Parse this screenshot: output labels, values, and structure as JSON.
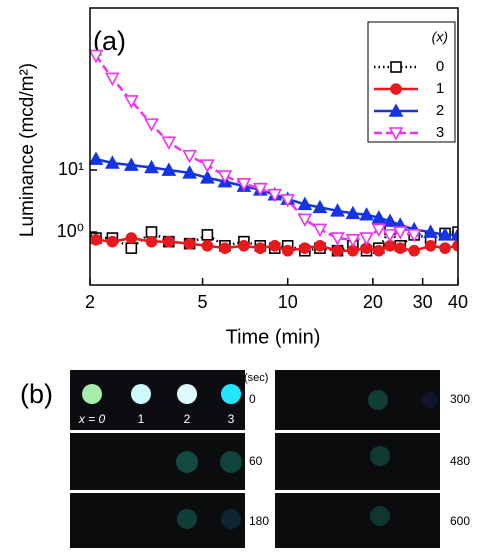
{
  "chart_data": {
    "type": "line",
    "panel_label": "(a)",
    "x_label": "Time (min)",
    "y_label": "Luminance (mcd/m²)",
    "xscale": "log",
    "yscale": "log",
    "xlim": [
      2,
      40
    ],
    "ylim": [
      0.14,
      4100
    ],
    "xticks": [
      2,
      5,
      10,
      20,
      30,
      40
    ],
    "yticks": [
      {
        "value": 1,
        "label": "10⁰"
      },
      {
        "value": 10,
        "label": "10¹"
      }
    ],
    "legend_title": "(x)",
    "legend": "upper right",
    "x": [
      2.1,
      2.4,
      2.8,
      3.3,
      3.8,
      4.5,
      5.2,
      6,
      7,
      8,
      9,
      10,
      11.5,
      13,
      15,
      17,
      19,
      21,
      23,
      25,
      28,
      32,
      36,
      40
    ],
    "series": [
      {
        "name": "0",
        "color": "#000000",
        "dash": "dot",
        "marker": "square-open",
        "values": [
          0.8,
          0.8,
          0.55,
          1.0,
          0.7,
          0.65,
          0.9,
          0.6,
          0.7,
          0.6,
          0.55,
          0.6,
          0.5,
          0.55,
          0.5,
          0.6,
          0.5,
          0.55,
          1.1,
          0.6,
          0.9,
          0.8,
          0.95,
          1.0
        ]
      },
      {
        "name": "1",
        "color": "#e8181c",
        "dash": "solid",
        "marker": "circle",
        "values": [
          0.75,
          0.7,
          0.8,
          0.7,
          0.7,
          0.65,
          0.6,
          0.55,
          0.6,
          0.55,
          0.6,
          0.5,
          0.55,
          0.6,
          0.5,
          0.5,
          0.55,
          0.5,
          0.6,
          0.55,
          0.5,
          0.6,
          0.55,
          0.6
        ]
      },
      {
        "name": "2",
        "color": "#1434e6",
        "dash": "solid",
        "marker": "triangle-up",
        "values": [
          15,
          13,
          12,
          11,
          10,
          9,
          7.5,
          6.5,
          5.5,
          4.8,
          4,
          3.4,
          2.8,
          2.5,
          2.2,
          2,
          1.9,
          1.7,
          1.5,
          1.3,
          1.1,
          1,
          0.9,
          0.9
        ]
      },
      {
        "name": "3",
        "color": "#ee33ee",
        "dash": "dash",
        "marker": "triangle-down-open",
        "values": [
          700,
          300,
          130,
          55,
          28,
          17,
          12,
          8,
          6,
          5,
          4,
          3.3,
          1.6,
          1.1,
          0.8,
          0.75,
          0.8,
          1.1,
          0.9,
          1.0,
          0.9,
          null,
          null,
          null
        ]
      }
    ]
  },
  "panel_b": {
    "label": "(b)",
    "unit": "(sec)",
    "sample_labels": [
      "x = 0",
      "1",
      "2",
      "3"
    ],
    "times_left": [
      "0",
      "60",
      "180"
    ],
    "times_right": [
      "300",
      "480",
      "600"
    ]
  }
}
